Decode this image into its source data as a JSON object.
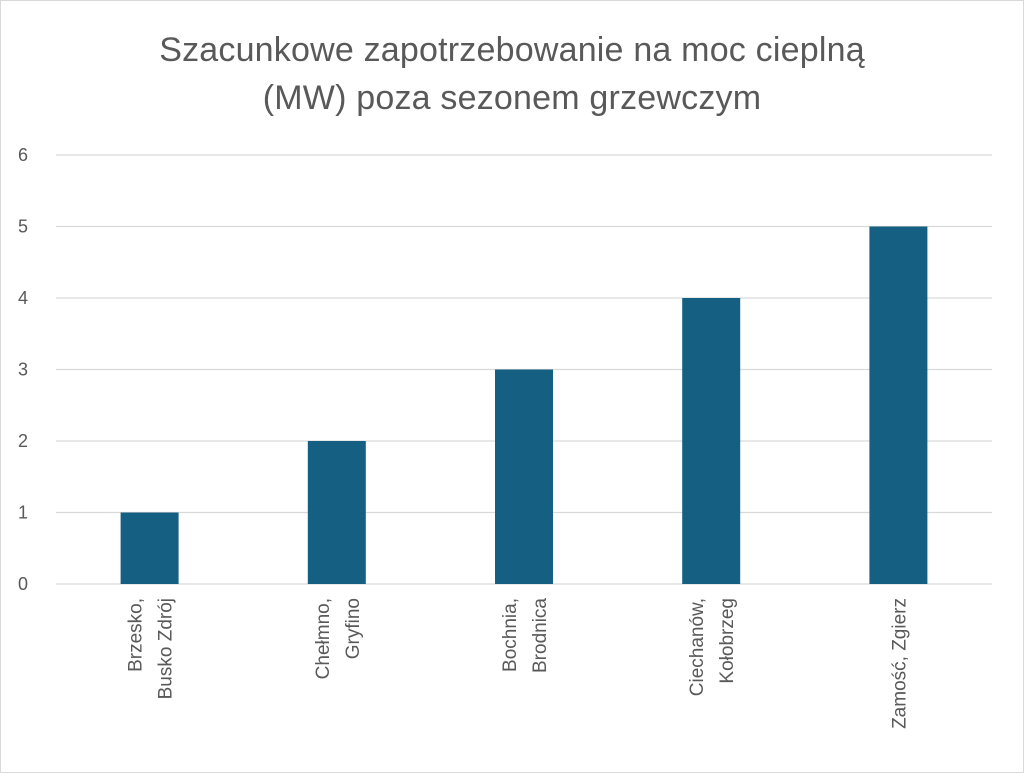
{
  "chart_data": {
    "type": "bar",
    "title": "Szacunkowe zapotrzebowanie na moc cieplną (MW) poza sezonem grzewczym",
    "title_lines": [
      "Szacunkowe zapotrzebowanie na moc cieplną",
      "(MW) poza sezonem grzewczym"
    ],
    "categories": [
      [
        "Brzesko,",
        "Busko Zdrój"
      ],
      [
        "Chełmno,",
        "Gryfino"
      ],
      [
        "Bochnia,",
        "Brodnica"
      ],
      [
        "Ciechanów,",
        "Kołobrzeg"
      ],
      [
        "Zamość, Zgierz"
      ]
    ],
    "values": [
      1,
      2,
      3,
      4,
      5
    ],
    "xlabel": "",
    "ylabel": "",
    "ylim": [
      0,
      6
    ],
    "yticks": [
      "0",
      "1",
      "2",
      "3",
      "4",
      "5",
      "6"
    ],
    "grid": true,
    "legend": "none",
    "bar_color": "#156082",
    "grid_color": "#d9d9d9",
    "text_color": "#595959"
  }
}
